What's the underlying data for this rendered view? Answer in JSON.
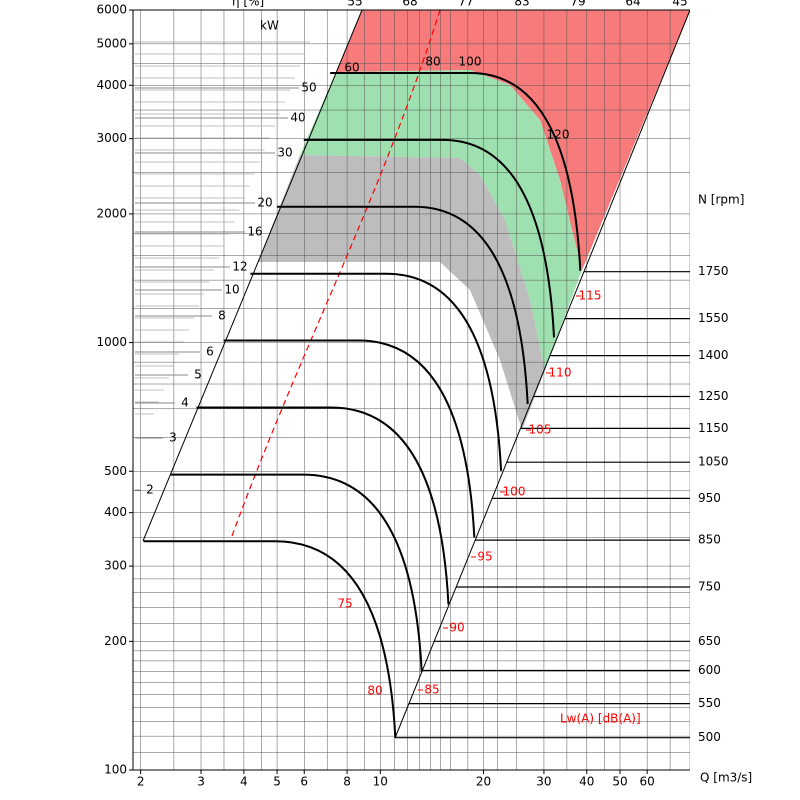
{
  "chart_data": {
    "type": "line",
    "x_label": "Q [m3/s]",
    "y2_label": "N [rpm]",
    "power_unit": "kW",
    "efficiency_label": "η [%]",
    "noise_title": "Lw(A)  [dB(A)]",
    "xscale": "log",
    "yscale": "log",
    "xlim": [
      1.9,
      80
    ],
    "ylim": [
      100,
      6000
    ],
    "xticks": [
      2,
      3,
      4,
      5,
      6,
      8,
      10,
      20,
      30,
      40,
      50,
      60
    ],
    "yticks": [
      100,
      200,
      300,
      400,
      500,
      1000,
      2000,
      3000,
      4000,
      5000,
      6000
    ],
    "grid": true,
    "xgrid": [
      2,
      2.5,
      3,
      3.5,
      4,
      4.5,
      5,
      6,
      7,
      8,
      9,
      10,
      11,
      12,
      13,
      14,
      15,
      16,
      18,
      20,
      22,
      25,
      30,
      35,
      40,
      45,
      50,
      60,
      70,
      80
    ],
    "ygrid": [
      100,
      110,
      120,
      130,
      140,
      150,
      160,
      170,
      180,
      190,
      200,
      220,
      240,
      260,
      280,
      300,
      350,
      400,
      450,
      500,
      600,
      700,
      800,
      900,
      1000,
      1200,
      1400,
      1600,
      1800,
      2000,
      2500,
      3000,
      3500,
      4000,
      4500,
      5000,
      6000
    ],
    "grid_color": "#555555",
    "series": [
      {
        "color": "#000000",
        "x": [
          2.04,
          4.94,
          11.06
        ],
        "values": [
          343,
          343,
          119
        ]
      },
      {
        "color": "#000000",
        "x": [
          2.44,
          5.96,
          13.2
        ],
        "values": [
          491,
          491,
          170
        ]
      },
      {
        "color": "#000000",
        "x": [
          2.91,
          7.18,
          15.8
        ],
        "values": [
          705,
          705,
          244
        ]
      },
      {
        "color": "#000000",
        "x": [
          3.49,
          8.66,
          18.8
        ],
        "values": [
          1011,
          1011,
          350
        ]
      },
      {
        "color": "#000000",
        "x": [
          4.18,
          10.4,
          22.5
        ],
        "values": [
          1449,
          1449,
          501
        ]
      },
      {
        "color": "#000000",
        "x": [
          5.0,
          12.6,
          26.9
        ],
        "values": [
          2079,
          2079,
          718
        ]
      },
      {
        "color": "#000000",
        "x": [
          5.98,
          15.2,
          32.1
        ],
        "values": [
          2981,
          2981,
          1028
        ]
      },
      {
        "color": "#000000",
        "x": [
          7.14,
          18.3,
          38.3
        ],
        "values": [
          4274,
          4274,
          1472
        ]
      }
    ],
    "speed_lines": {
      "rpm": [
        1750,
        1550,
        1400,
        1250,
        1150,
        1050,
        950,
        850,
        750,
        650,
        600,
        550,
        500
      ],
      "values": [
        1465,
        1138,
        932,
        748,
        630,
        525,
        432,
        345,
        268,
        200,
        171,
        143,
        119
      ]
    },
    "power_labels": [
      2,
      3,
      4,
      5,
      6,
      8,
      10,
      12,
      16,
      20,
      30,
      40,
      50,
      60
    ],
    "efficiency_ticks": [
      55,
      68,
      77,
      83,
      79,
      64,
      45
    ],
    "top_curve_labels": [
      80,
      100,
      120
    ],
    "noise_labels": [
      75,
      80,
      85,
      90,
      95,
      100,
      105,
      110,
      115
    ],
    "noise_color": "#ff0000",
    "zone_colors": [
      "#f77b7b",
      "#9fe0b0",
      "#bdbdbd"
    ]
  }
}
